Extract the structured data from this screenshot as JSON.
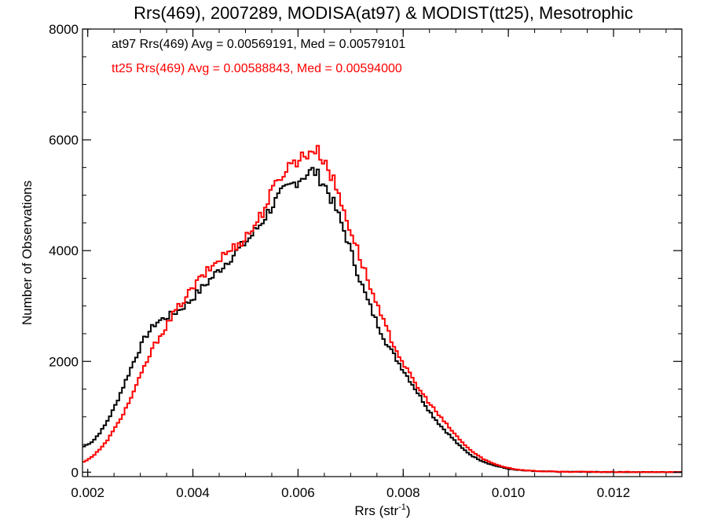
{
  "chart_data": {
    "type": "line",
    "title": "Rrs(469), 2007289, MODISA(at97) & MODIST(tt25), Mesotrophic",
    "xlabel": {
      "base": "Rrs (str",
      "sup": "-1",
      "tail": ")"
    },
    "ylabel": "Number of Observations",
    "xlim": [
      0.0019,
      0.0133
    ],
    "ylim": [
      -80,
      8000
    ],
    "xticks": [
      0.002,
      0.004,
      0.006,
      0.008,
      0.01,
      0.012
    ],
    "xtick_labels": [
      "0.002",
      "0.004",
      "0.006",
      "0.008",
      "0.010",
      "0.012"
    ],
    "yticks": [
      0,
      2000,
      4000,
      6000,
      8000
    ],
    "ytick_labels": [
      "0",
      "2000",
      "4000",
      "6000",
      "8000"
    ],
    "legend_position": "top-left",
    "series": [
      {
        "name": "at97 Rrs(469) Avg = 0.00569191, Med = 0.00579101",
        "color": "#000000",
        "points": [
          [
            0.0019,
            450
          ],
          [
            0.0021,
            560
          ],
          [
            0.0023,
            800
          ],
          [
            0.0025,
            1150
          ],
          [
            0.0027,
            1600
          ],
          [
            0.0029,
            2050
          ],
          [
            0.0031,
            2450
          ],
          [
            0.0033,
            2700
          ],
          [
            0.0035,
            2800
          ],
          [
            0.0037,
            2900
          ],
          [
            0.0039,
            3050
          ],
          [
            0.0041,
            3250
          ],
          [
            0.0043,
            3450
          ],
          [
            0.0045,
            3650
          ],
          [
            0.0047,
            3850
          ],
          [
            0.0049,
            4050
          ],
          [
            0.0051,
            4250
          ],
          [
            0.0053,
            4500
          ],
          [
            0.0055,
            4800
          ],
          [
            0.0057,
            5050
          ],
          [
            0.0059,
            5200
          ],
          [
            0.0061,
            5350
          ],
          [
            0.0063,
            5450
          ],
          [
            0.0065,
            5200
          ],
          [
            0.0067,
            4800
          ],
          [
            0.0069,
            4300
          ],
          [
            0.0071,
            3700
          ],
          [
            0.0073,
            3150
          ],
          [
            0.0075,
            2700
          ],
          [
            0.0077,
            2300
          ],
          [
            0.0079,
            2000
          ],
          [
            0.0081,
            1700
          ],
          [
            0.0083,
            1400
          ],
          [
            0.0085,
            1100
          ],
          [
            0.0087,
            850
          ],
          [
            0.0089,
            650
          ],
          [
            0.0091,
            450
          ],
          [
            0.0093,
            300
          ],
          [
            0.0095,
            200
          ],
          [
            0.0097,
            130
          ],
          [
            0.0099,
            80
          ],
          [
            0.0101,
            45
          ],
          [
            0.0103,
            28
          ],
          [
            0.0105,
            18
          ],
          [
            0.0107,
            12
          ],
          [
            0.011,
            7
          ],
          [
            0.0115,
            4
          ],
          [
            0.012,
            2
          ],
          [
            0.0125,
            1
          ],
          [
            0.0133,
            0
          ]
        ]
      },
      {
        "name": "tt25 Rrs(469) Avg = 0.00588843, Med = 0.00594000",
        "color": "#ff0000",
        "points": [
          [
            0.0019,
            170
          ],
          [
            0.0021,
            290
          ],
          [
            0.0023,
            480
          ],
          [
            0.0025,
            760
          ],
          [
            0.0027,
            1100
          ],
          [
            0.0029,
            1500
          ],
          [
            0.0031,
            1950
          ],
          [
            0.0033,
            2350
          ],
          [
            0.0035,
            2650
          ],
          [
            0.0037,
            2950
          ],
          [
            0.0039,
            3200
          ],
          [
            0.0041,
            3450
          ],
          [
            0.0043,
            3650
          ],
          [
            0.0045,
            3850
          ],
          [
            0.0047,
            4000
          ],
          [
            0.0049,
            4150
          ],
          [
            0.0051,
            4350
          ],
          [
            0.0053,
            4650
          ],
          [
            0.0055,
            5050
          ],
          [
            0.0057,
            5400
          ],
          [
            0.0059,
            5600
          ],
          [
            0.0061,
            5700
          ],
          [
            0.0063,
            5850
          ],
          [
            0.0065,
            5650
          ],
          [
            0.0067,
            5200
          ],
          [
            0.0069,
            4650
          ],
          [
            0.0071,
            4100
          ],
          [
            0.0073,
            3550
          ],
          [
            0.0075,
            3000
          ],
          [
            0.0077,
            2550
          ],
          [
            0.0079,
            2150
          ],
          [
            0.0081,
            1800
          ],
          [
            0.0083,
            1500
          ],
          [
            0.0085,
            1250
          ],
          [
            0.0087,
            1000
          ],
          [
            0.0089,
            780
          ],
          [
            0.0091,
            560
          ],
          [
            0.0093,
            380
          ],
          [
            0.0095,
            250
          ],
          [
            0.0097,
            160
          ],
          [
            0.0099,
            100
          ],
          [
            0.0101,
            60
          ],
          [
            0.0103,
            35
          ],
          [
            0.0105,
            22
          ],
          [
            0.0107,
            14
          ],
          [
            0.011,
            8
          ],
          [
            0.0115,
            5
          ],
          [
            0.012,
            3
          ],
          [
            0.0125,
            1
          ],
          [
            0.0133,
            0
          ]
        ]
      }
    ]
  }
}
